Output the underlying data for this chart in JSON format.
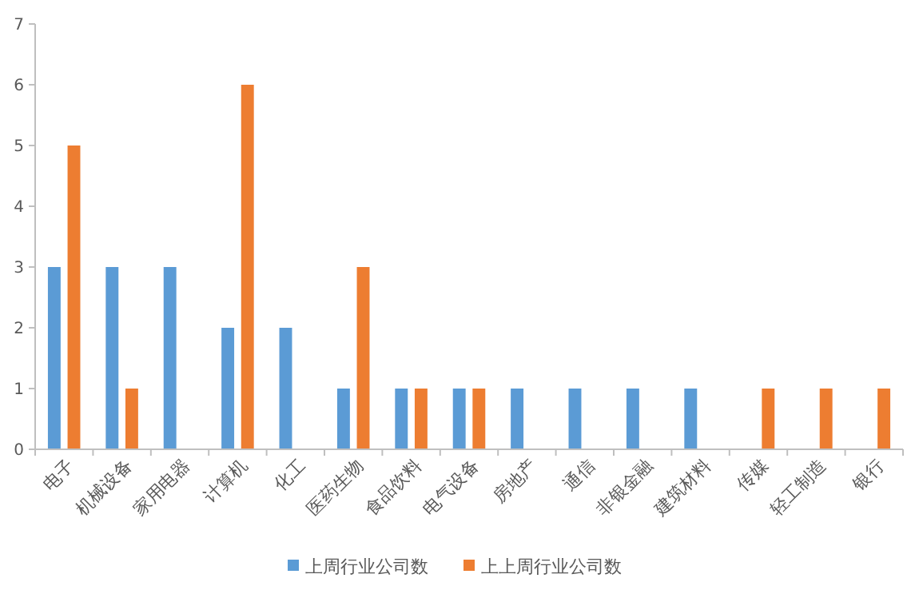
{
  "chart_data": {
    "type": "bar",
    "categories": [
      "电子",
      "机械设备",
      "家用电器",
      "计算机",
      "化工",
      "医药生物",
      "食品饮料",
      "电气设备",
      "房地产",
      "通信",
      "非银金融",
      "建筑材料",
      "传媒",
      "轻工制造",
      "银行"
    ],
    "series": [
      {
        "name": "上周行业公司数",
        "color": "#5b9bd5",
        "values": [
          3,
          3,
          3,
          2,
          2,
          1,
          1,
          1,
          1,
          1,
          1,
          1,
          0,
          0,
          0
        ]
      },
      {
        "name": "上上周行业公司数",
        "color": "#ed7d31",
        "values": [
          5,
          1,
          0,
          6,
          0,
          3,
          1,
          1,
          0,
          0,
          0,
          0,
          1,
          1,
          1
        ]
      }
    ],
    "ylim": [
      0,
      7
    ],
    "yticks": [
      0,
      1,
      2,
      3,
      4,
      5,
      6,
      7
    ],
    "grid": false,
    "legend": "bottom"
  }
}
